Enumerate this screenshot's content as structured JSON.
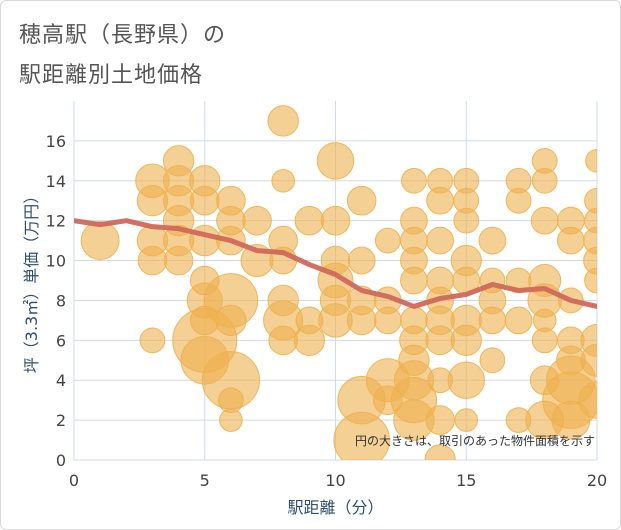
{
  "title_line1": "穂高駅（長野県）の",
  "title_line2": "駅距離別土地価格",
  "chart_data": {
    "type": "scatter",
    "xlabel": "駅距離（分）",
    "ylabel": "坪（3.3㎡）単価（万円）",
    "xlim": [
      0,
      20
    ],
    "ylim": [
      0,
      18
    ],
    "xticks": [
      0,
      5,
      10,
      15,
      20
    ],
    "yticks": [
      0,
      2,
      4,
      6,
      8,
      10,
      12,
      14,
      16
    ],
    "note": "円の大きさは、取引のあった物件面積を示す",
    "colors": {
      "bubble": "#eeb04e",
      "line": "#d0685a",
      "grid": "#cfdbe8"
    },
    "trend_line": {
      "x": [
        0,
        1,
        2,
        3,
        4,
        5,
        6,
        7,
        8,
        9,
        10,
        11,
        12,
        13,
        14,
        15,
        16,
        17,
        18,
        19,
        20
      ],
      "y": [
        12.0,
        11.8,
        12.0,
        11.7,
        11.6,
        11.3,
        11.0,
        10.5,
        10.4,
        9.8,
        9.3,
        8.5,
        8.2,
        7.7,
        8.1,
        8.3,
        8.8,
        8.5,
        8.6,
        8.0,
        7.7
      ]
    },
    "points": [
      {
        "x": 1,
        "y": 11,
        "s": 1.4
      },
      {
        "x": 3,
        "y": 14,
        "s": 1.1
      },
      {
        "x": 3,
        "y": 13,
        "s": 0.9
      },
      {
        "x": 3,
        "y": 11,
        "s": 0.9
      },
      {
        "x": 3,
        "y": 10,
        "s": 0.8
      },
      {
        "x": 3,
        "y": 6,
        "s": 0.6
      },
      {
        "x": 4,
        "y": 15,
        "s": 0.9
      },
      {
        "x": 4,
        "y": 14,
        "s": 0.9
      },
      {
        "x": 4,
        "y": 13,
        "s": 0.9
      },
      {
        "x": 4,
        "y": 12,
        "s": 0.9
      },
      {
        "x": 4,
        "y": 11,
        "s": 0.9
      },
      {
        "x": 4,
        "y": 10,
        "s": 0.8
      },
      {
        "x": 5,
        "y": 14,
        "s": 0.9
      },
      {
        "x": 5,
        "y": 13,
        "s": 0.8
      },
      {
        "x": 5,
        "y": 11,
        "s": 0.9
      },
      {
        "x": 5,
        "y": 9,
        "s": 0.8
      },
      {
        "x": 5,
        "y": 8,
        "s": 1.2
      },
      {
        "x": 5,
        "y": 7,
        "s": 0.8
      },
      {
        "x": 5,
        "y": 6,
        "s": 4.0
      },
      {
        "x": 5,
        "y": 5,
        "s": 2.2
      },
      {
        "x": 6,
        "y": 13,
        "s": 0.8
      },
      {
        "x": 6,
        "y": 12,
        "s": 0.8
      },
      {
        "x": 6,
        "y": 11,
        "s": 0.8
      },
      {
        "x": 6,
        "y": 8,
        "s": 2.8
      },
      {
        "x": 6,
        "y": 7,
        "s": 0.9
      },
      {
        "x": 6,
        "y": 4,
        "s": 3.2
      },
      {
        "x": 6,
        "y": 3,
        "s": 0.6
      },
      {
        "x": 6,
        "y": 2,
        "s": 0.5
      },
      {
        "x": 7,
        "y": 12,
        "s": 0.8
      },
      {
        "x": 7,
        "y": 10,
        "s": 1.0
      },
      {
        "x": 8,
        "y": 17,
        "s": 0.9
      },
      {
        "x": 8,
        "y": 14,
        "s": 0.5
      },
      {
        "x": 8,
        "y": 11,
        "s": 0.8
      },
      {
        "x": 8,
        "y": 10,
        "s": 0.7
      },
      {
        "x": 8,
        "y": 8,
        "s": 0.9
      },
      {
        "x": 8,
        "y": 7,
        "s": 1.5
      },
      {
        "x": 8,
        "y": 6,
        "s": 0.8
      },
      {
        "x": 9,
        "y": 12,
        "s": 0.8
      },
      {
        "x": 9,
        "y": 7,
        "s": 0.7
      },
      {
        "x": 9,
        "y": 6,
        "s": 0.9
      },
      {
        "x": 10,
        "y": 15,
        "s": 1.3
      },
      {
        "x": 10,
        "y": 12,
        "s": 0.8
      },
      {
        "x": 10,
        "y": 10,
        "s": 0.8
      },
      {
        "x": 10,
        "y": 9,
        "s": 1.2
      },
      {
        "x": 10,
        "y": 8,
        "s": 0.9
      },
      {
        "x": 10,
        "y": 7,
        "s": 1.1
      },
      {
        "x": 11,
        "y": 13,
        "s": 0.8
      },
      {
        "x": 11,
        "y": 10,
        "s": 0.7
      },
      {
        "x": 11,
        "y": 8,
        "s": 0.8
      },
      {
        "x": 11,
        "y": 7,
        "s": 0.8
      },
      {
        "x": 11,
        "y": 3,
        "s": 2.2
      },
      {
        "x": 11,
        "y": 1,
        "s": 3.0
      },
      {
        "x": 12,
        "y": 11,
        "s": 0.6
      },
      {
        "x": 12,
        "y": 8,
        "s": 0.7
      },
      {
        "x": 12,
        "y": 7,
        "s": 0.7
      },
      {
        "x": 12,
        "y": 4,
        "s": 1.8
      },
      {
        "x": 12,
        "y": 3,
        "s": 0.8
      },
      {
        "x": 13,
        "y": 14,
        "s": 0.6
      },
      {
        "x": 13,
        "y": 12,
        "s": 0.7
      },
      {
        "x": 13,
        "y": 11,
        "s": 0.7
      },
      {
        "x": 13,
        "y": 10,
        "s": 0.7
      },
      {
        "x": 13,
        "y": 9,
        "s": 0.7
      },
      {
        "x": 13,
        "y": 7,
        "s": 0.7
      },
      {
        "x": 13,
        "y": 6,
        "s": 0.8
      },
      {
        "x": 13,
        "y": 5,
        "s": 0.9
      },
      {
        "x": 13,
        "y": 4,
        "s": 1.5
      },
      {
        "x": 13,
        "y": 3,
        "s": 2.0
      },
      {
        "x": 13,
        "y": 2,
        "s": 1.6
      },
      {
        "x": 14,
        "y": 14,
        "s": 0.6
      },
      {
        "x": 14,
        "y": 13,
        "s": 0.7
      },
      {
        "x": 14,
        "y": 11,
        "s": 0.7
      },
      {
        "x": 14,
        "y": 9,
        "s": 0.7
      },
      {
        "x": 14,
        "y": 8,
        "s": 0.7
      },
      {
        "x": 14,
        "y": 7,
        "s": 0.8
      },
      {
        "x": 14,
        "y": 6,
        "s": 0.8
      },
      {
        "x": 14,
        "y": 4,
        "s": 0.6
      },
      {
        "x": 14,
        "y": 2,
        "s": 0.8
      },
      {
        "x": 14,
        "y": 0,
        "s": 0.9
      },
      {
        "x": 15,
        "y": 14,
        "s": 0.6
      },
      {
        "x": 15,
        "y": 13,
        "s": 0.6
      },
      {
        "x": 15,
        "y": 12,
        "s": 0.6
      },
      {
        "x": 15,
        "y": 10,
        "s": 0.9
      },
      {
        "x": 15,
        "y": 9,
        "s": 0.7
      },
      {
        "x": 15,
        "y": 7,
        "s": 0.9
      },
      {
        "x": 15,
        "y": 6,
        "s": 0.9
      },
      {
        "x": 15,
        "y": 4,
        "s": 1.3
      },
      {
        "x": 15,
        "y": 2,
        "s": 0.5
      },
      {
        "x": 16,
        "y": 11,
        "s": 0.7
      },
      {
        "x": 16,
        "y": 9,
        "s": 0.6
      },
      {
        "x": 16,
        "y": 8,
        "s": 0.7
      },
      {
        "x": 16,
        "y": 7,
        "s": 0.7
      },
      {
        "x": 16,
        "y": 5,
        "s": 0.6
      },
      {
        "x": 17,
        "y": 14,
        "s": 0.6
      },
      {
        "x": 17,
        "y": 13,
        "s": 0.6
      },
      {
        "x": 17,
        "y": 9,
        "s": 0.6
      },
      {
        "x": 17,
        "y": 7,
        "s": 0.7
      },
      {
        "x": 17,
        "y": 2,
        "s": 0.6
      },
      {
        "x": 18,
        "y": 15,
        "s": 0.6
      },
      {
        "x": 18,
        "y": 14,
        "s": 0.6
      },
      {
        "x": 18,
        "y": 12,
        "s": 0.7
      },
      {
        "x": 18,
        "y": 9,
        "s": 1.0
      },
      {
        "x": 18,
        "y": 8,
        "s": 1.1
      },
      {
        "x": 18,
        "y": 7,
        "s": 0.5
      },
      {
        "x": 18,
        "y": 6,
        "s": 0.6
      },
      {
        "x": 18,
        "y": 4,
        "s": 0.8
      },
      {
        "x": 18,
        "y": 2,
        "s": 1.4
      },
      {
        "x": 19,
        "y": 12,
        "s": 0.7
      },
      {
        "x": 19,
        "y": 11,
        "s": 0.7
      },
      {
        "x": 19,
        "y": 8,
        "s": 0.6
      },
      {
        "x": 19,
        "y": 6,
        "s": 0.7
      },
      {
        "x": 19,
        "y": 5,
        "s": 0.8
      },
      {
        "x": 19,
        "y": 4,
        "s": 2.3
      },
      {
        "x": 19,
        "y": 3,
        "s": 3.1
      },
      {
        "x": 19,
        "y": 2,
        "s": 1.4
      },
      {
        "x": 20,
        "y": 15,
        "s": 0.5
      },
      {
        "x": 20,
        "y": 13,
        "s": 0.6
      },
      {
        "x": 20,
        "y": 12,
        "s": 0.6
      },
      {
        "x": 20,
        "y": 11,
        "s": 0.7
      },
      {
        "x": 20,
        "y": 10,
        "s": 0.7
      },
      {
        "x": 20,
        "y": 9,
        "s": 0.6
      },
      {
        "x": 20,
        "y": 6,
        "s": 1.0
      },
      {
        "x": 20,
        "y": 5,
        "s": 1.0
      },
      {
        "x": 20,
        "y": 3,
        "s": 1.3
      }
    ]
  }
}
